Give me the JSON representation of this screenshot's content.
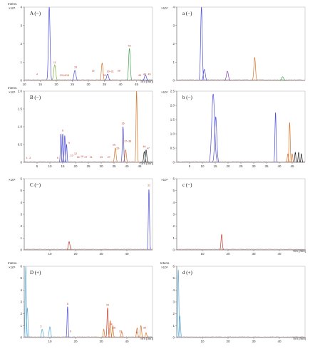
{
  "chart_data": [
    {
      "type": "line",
      "panel": "A (−)",
      "ylabel": "Intens.",
      "yexp": "×10⁵",
      "xlabel": "Tim [min]",
      "xlim": [
        10,
        50
      ],
      "xticks": [
        10,
        15,
        20,
        25,
        30,
        35,
        40,
        45
      ],
      "ylim": [
        0,
        4
      ],
      "yticks": [
        0,
        1,
        2,
        3,
        4
      ],
      "ytick_labels": [
        "0",
        "1",
        "2",
        "3",
        "4"
      ],
      "peaks": [
        {
          "t": 17.8,
          "h": 4.0,
          "w": 0.25,
          "c": "#4b4bd6"
        },
        {
          "t": 19.5,
          "h": 0.85,
          "w": 0.3,
          "c": "#7fb03c"
        },
        {
          "t": 25.8,
          "h": 0.55,
          "w": 0.3,
          "c": "#4b4bd6"
        },
        {
          "t": 34.3,
          "h": 0.95,
          "w": 0.25,
          "c": "#d9732a"
        },
        {
          "t": 36.0,
          "h": 0.35,
          "w": 0.3,
          "c": "#4b4bd6"
        },
        {
          "t": 42.8,
          "h": 1.75,
          "w": 0.25,
          "c": "#3fa34d"
        },
        {
          "t": 47.8,
          "h": 0.3,
          "w": 0.3,
          "c": "#4b4bd6"
        }
      ],
      "labels": [
        {
          "t": 14.0,
          "h": 0.25,
          "text": "4"
        },
        {
          "t": 19.5,
          "h": 0.9,
          "text": "11"
        },
        {
          "t": 21.5,
          "h": 0.2,
          "text": "13"
        },
        {
          "t": 23.0,
          "h": 0.2,
          "text": "14/15"
        },
        {
          "t": 26.0,
          "h": 0.65,
          "text": "18"
        },
        {
          "t": 31.5,
          "h": 0.45,
          "text": "22"
        },
        {
          "t": 35.0,
          "h": 0.2,
          "text": "28"
        },
        {
          "t": 36.8,
          "h": 0.4,
          "text": "30–31"
        },
        {
          "t": 39.5,
          "h": 0.45,
          "text": "39"
        },
        {
          "t": 42.8,
          "h": 1.8,
          "text": "42"
        },
        {
          "t": 46.0,
          "h": 0.2,
          "text": "45"
        },
        {
          "t": 47.5,
          "h": 0.25,
          "text": "48"
        },
        {
          "t": 49.0,
          "h": 0.25,
          "text": "49"
        }
      ]
    },
    {
      "type": "line",
      "panel": "a (−)",
      "ylabel": "",
      "yexp": "×10⁵",
      "xlabel": "",
      "xlim": [
        10,
        50
      ],
      "xticks": [],
      "ylim": [
        0,
        4
      ],
      "yticks": [
        0,
        1,
        2,
        3,
        4
      ],
      "ytick_labels": [
        "0",
        "1",
        "2",
        "3",
        "4"
      ],
      "peaks": [
        {
          "t": 17.7,
          "h": 4.0,
          "w": 0.25,
          "c": "#4b4bd6"
        },
        {
          "t": 18.6,
          "h": 0.6,
          "w": 0.3,
          "c": "#4b4bd6"
        },
        {
          "t": 25.8,
          "h": 0.5,
          "w": 0.3,
          "c": "#8a3fb0"
        },
        {
          "t": 34.3,
          "h": 1.25,
          "w": 0.25,
          "c": "#d9732a"
        },
        {
          "t": 43.0,
          "h": 0.2,
          "w": 0.3,
          "c": "#3fa34d"
        }
      ],
      "labels": []
    },
    {
      "type": "line",
      "panel": "B (−)",
      "ylabel": "Intens.",
      "yexp": "×10⁶",
      "xlabel": "Tim [min]",
      "xlim": [
        0,
        50
      ],
      "xticks": [
        5,
        10,
        15,
        20,
        25,
        30,
        35,
        40,
        45
      ],
      "ylim": [
        0,
        2.0
      ],
      "yticks": [
        0,
        0.5,
        1.0,
        1.5,
        2.0
      ],
      "ytick_labels": [
        "0",
        "0.5",
        "1.0",
        "1.5",
        "2.0"
      ],
      "peaks": [
        {
          "t": 14.3,
          "h": 0.8,
          "w": 0.2,
          "c": "#4b4bd6"
        },
        {
          "t": 15.0,
          "h": 0.8,
          "w": 0.2,
          "c": "#4b4bd6"
        },
        {
          "t": 15.8,
          "h": 0.75,
          "w": 0.2,
          "c": "#4b4bd6"
        },
        {
          "t": 16.5,
          "h": 0.5,
          "w": 0.2,
          "c": "#4b4bd6"
        },
        {
          "t": 38.5,
          "h": 1.0,
          "w": 0.25,
          "c": "#4b4bd6"
        },
        {
          "t": 43.8,
          "h": 2.0,
          "w": 0.22,
          "c": "#d9732a"
        },
        {
          "t": 46.8,
          "h": 0.3,
          "w": 0.25,
          "c": "#222222"
        },
        {
          "t": 47.5,
          "h": 0.35,
          "w": 0.25,
          "c": "#222222"
        },
        {
          "t": 35.5,
          "h": 0.4,
          "w": 0.3,
          "c": "#d9732a"
        },
        {
          "t": 39.5,
          "h": 0.35,
          "w": 0.3,
          "c": "#d9732a"
        }
      ],
      "labels": [
        {
          "t": 1.0,
          "h": 0.08,
          "text": "1"
        },
        {
          "t": 2.3,
          "h": 0.08,
          "text": "2"
        },
        {
          "t": 13.0,
          "h": 0.08,
          "text": "5"
        },
        {
          "t": 15.0,
          "h": 0.85,
          "text": "6"
        },
        {
          "t": 17.5,
          "h": 0.5,
          "text": "9"
        },
        {
          "t": 18.5,
          "h": 0.15,
          "text": "10"
        },
        {
          "t": 20.0,
          "h": 0.2,
          "text": "12"
        },
        {
          "t": 21.0,
          "h": 0.1,
          "text": "16"
        },
        {
          "t": 22.5,
          "h": 0.12,
          "text": "19"
        },
        {
          "t": 24.0,
          "h": 0.1,
          "text": "27"
        },
        {
          "t": 26.0,
          "h": 0.1,
          "text": "21"
        },
        {
          "t": 30.0,
          "h": 0.1,
          "text": "23"
        },
        {
          "t": 33.0,
          "h": 0.1,
          "text": "27"
        },
        {
          "t": 35.0,
          "h": 0.45,
          "text": "25"
        },
        {
          "t": 36.5,
          "h": 0.35,
          "text": "29"
        },
        {
          "t": 38.5,
          "h": 1.05,
          "text": "36"
        },
        {
          "t": 40.3,
          "h": 0.55,
          "text": "37–38"
        },
        {
          "t": 46.8,
          "h": 0.4,
          "text": "46"
        },
        {
          "t": 48.3,
          "h": 0.35,
          "text": "47"
        }
      ]
    },
    {
      "type": "line",
      "panel": "b (−)",
      "ylabel": "",
      "yexp": "×10⁶",
      "xlabel": "",
      "xlim": [
        0,
        50
      ],
      "xticks": [
        5,
        10,
        15,
        20,
        25,
        30,
        35,
        40,
        45
      ],
      "ylim": [
        0,
        2.5
      ],
      "yticks": [
        0,
        0.5,
        1.0,
        1.5,
        2.0,
        2.5
      ],
      "ytick_labels": [
        "0",
        "0.5",
        "1.0",
        "1.5",
        "2.0",
        "2.5"
      ],
      "peaks": [
        {
          "t": 14.2,
          "h": 2.4,
          "w": 0.55,
          "c": "#4b4bd6"
        },
        {
          "t": 15.2,
          "h": 1.6,
          "w": 0.4,
          "c": "#4b4bd6"
        },
        {
          "t": 38.5,
          "h": 1.75,
          "w": 0.22,
          "c": "#4b4bd6"
        },
        {
          "t": 43.3,
          "h": 0.3,
          "w": 0.22,
          "c": "#d9732a"
        },
        {
          "t": 44.0,
          "h": 1.4,
          "w": 0.22,
          "c": "#d9732a"
        },
        {
          "t": 45.0,
          "h": 0.3,
          "w": 0.22,
          "c": "#d9732a"
        },
        {
          "t": 46.2,
          "h": 0.35,
          "w": 0.2,
          "c": "#222222"
        },
        {
          "t": 47.5,
          "h": 0.35,
          "w": 0.2,
          "c": "#222222"
        },
        {
          "t": 48.6,
          "h": 0.3,
          "w": 0.2,
          "c": "#222222"
        }
      ],
      "labels": []
    },
    {
      "type": "line",
      "panel": "C (−)",
      "ylabel": "",
      "yexp": "×10⁶",
      "xlabel": "",
      "xlim": [
        0,
        50
      ],
      "xticks": [
        10,
        20,
        30,
        40
      ],
      "ylim": [
        0,
        6
      ],
      "yticks": [
        0,
        1,
        2,
        3,
        4,
        5,
        6
      ],
      "ytick_labels": [
        "0",
        "1",
        "2",
        "3",
        "4",
        "5",
        "6"
      ],
      "peaks": [
        {
          "t": 17.5,
          "h": 0.7,
          "w": 0.3,
          "c": "#c0392b"
        },
        {
          "t": 48.6,
          "h": 5.1,
          "w": 0.22,
          "c": "#4b4bd6"
        }
      ],
      "labels": [
        {
          "t": 48.6,
          "h": 5.3,
          "text": "31"
        }
      ]
    },
    {
      "type": "line",
      "panel": "c (−)",
      "ylabel": "",
      "yexp": "×10⁵",
      "xlabel": "Tim [min]",
      "xlim": [
        0,
        50
      ],
      "xticks": [
        10,
        20,
        30,
        40
      ],
      "ylim": [
        0,
        6
      ],
      "yticks": [
        0,
        1,
        2,
        3,
        4,
        5,
        6
      ],
      "ytick_labels": [
        "0",
        "1",
        "2",
        "3",
        "4",
        "5",
        "6"
      ],
      "peaks": [
        {
          "t": 17.5,
          "h": 1.3,
          "w": 0.25,
          "c": "#c0392b"
        }
      ],
      "labels": []
    },
    {
      "type": "line",
      "panel": "D (+)",
      "ylabel": "Intens.",
      "yexp": "×10⁶",
      "xlabel": "Tim [min]",
      "xlim": [
        0,
        50
      ],
      "xticks": [
        10,
        20,
        30,
        40
      ],
      "ylim": [
        0,
        6
      ],
      "yticks": [
        0,
        1,
        2,
        3,
        4,
        5,
        6
      ],
      "ytick_labels": [
        "0",
        "1",
        "2",
        "3",
        "4",
        "5",
        "6"
      ],
      "peaks": [
        {
          "t": 0.6,
          "h": 6.0,
          "w": 0.22,
          "c": "#5aa9d6"
        },
        {
          "t": 1.2,
          "h": 2.5,
          "w": 0.25,
          "c": "#5aa9d6"
        },
        {
          "t": 7.0,
          "h": 0.7,
          "w": 0.3,
          "c": "#5aa9d6"
        },
        {
          "t": 10.0,
          "h": 0.9,
          "w": 0.3,
          "c": "#5aa9d6"
        },
        {
          "t": 16.9,
          "h": 2.6,
          "w": 0.2,
          "c": "#4b4bd6"
        },
        {
          "t": 32.5,
          "h": 2.5,
          "w": 0.22,
          "c": "#c0392b"
        },
        {
          "t": 33.5,
          "h": 1.4,
          "w": 0.22,
          "c": "#d9732a"
        },
        {
          "t": 34.5,
          "h": 1.0,
          "w": 0.22,
          "c": "#d9732a"
        },
        {
          "t": 31.0,
          "h": 0.7,
          "w": 0.22,
          "c": "#d9732a"
        },
        {
          "t": 38.0,
          "h": 0.5,
          "w": 0.25,
          "c": "#d9732a"
        },
        {
          "t": 44.0,
          "h": 0.8,
          "w": 0.25,
          "c": "#d9732a"
        },
        {
          "t": 45.5,
          "h": 1.0,
          "w": 0.25,
          "c": "#d9732a"
        },
        {
          "t": 47.5,
          "h": 0.4,
          "w": 0.25,
          "c": "#d9732a"
        }
      ],
      "labels": [
        {
          "t": 6.5,
          "h": 0.8,
          "text": "3"
        },
        {
          "t": 16.9,
          "h": 2.7,
          "text": "8"
        },
        {
          "t": 18.0,
          "h": 0.4,
          "text": "9"
        },
        {
          "t": 32.5,
          "h": 2.6,
          "text": "23"
        },
        {
          "t": 33.8,
          "h": 1.0,
          "text": "24"
        },
        {
          "t": 35.0,
          "h": 0.7,
          "text": "26"
        },
        {
          "t": 37.5,
          "h": 0.4,
          "text": "33"
        },
        {
          "t": 44.0,
          "h": 0.3,
          "text": "41"
        },
        {
          "t": 47.0,
          "h": 0.7,
          "text": "50"
        }
      ]
    },
    {
      "type": "line",
      "panel": "d (+)",
      "ylabel": "Intens.",
      "yexp": "×10⁶",
      "xlabel": "Tim [min]",
      "xlim": [
        0,
        50
      ],
      "xticks": [
        10,
        20,
        30,
        40
      ],
      "ylim": [
        0,
        6
      ],
      "yticks": [
        0,
        1,
        2,
        3,
        4,
        5,
        6
      ],
      "ytick_labels": [
        "0",
        "1",
        "2",
        "3",
        "4",
        "5",
        "6"
      ],
      "peaks": [
        {
          "t": 0.6,
          "h": 5.7,
          "w": 0.22,
          "c": "#5aa9d6"
        },
        {
          "t": 1.2,
          "h": 1.8,
          "w": 0.25,
          "c": "#5aa9d6"
        }
      ],
      "labels": []
    }
  ]
}
